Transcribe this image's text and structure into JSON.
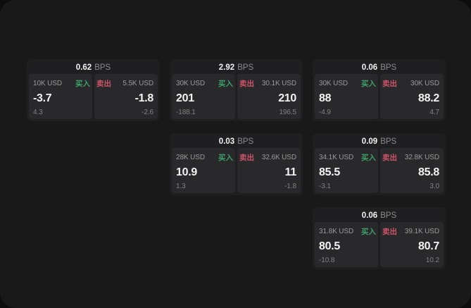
{
  "labels": {
    "buy": "买入",
    "sell": "卖出",
    "bps_unit": "BPS"
  },
  "colors": {
    "buy": "#3da06a",
    "sell": "#cd5468",
    "window_bg": "#19191a",
    "card_bg": "#1f1f21",
    "panel_bg": "#29292b"
  },
  "cards": [
    {
      "row": 1,
      "col": 1,
      "bps": "0.62",
      "buy": {
        "size": "10K USD",
        "price": "-3.7",
        "delta": "4.3"
      },
      "sell": {
        "size": "5.5K USD",
        "price": "-1.8",
        "delta": "-2.6"
      }
    },
    {
      "row": 1,
      "col": 2,
      "bps": "2.92",
      "buy": {
        "size": "30K USD",
        "price": "201",
        "delta": "-188.1"
      },
      "sell": {
        "size": "30.1K USD",
        "price": "210",
        "delta": "196.5"
      }
    },
    {
      "row": 1,
      "col": 3,
      "bps": "0.06",
      "buy": {
        "size": "30K USD",
        "price": "88",
        "delta": "-4.9"
      },
      "sell": {
        "size": "30K USD",
        "price": "88.2",
        "delta": "4.7"
      }
    },
    {
      "row": 2,
      "col": 2,
      "bps": "0.03",
      "buy": {
        "size": "28K USD",
        "price": "10.9",
        "delta": "1.3"
      },
      "sell": {
        "size": "32.6K USD",
        "price": "11",
        "delta": "-1.8"
      }
    },
    {
      "row": 2,
      "col": 3,
      "bps": "0.09",
      "buy": {
        "size": "34.1K USD",
        "price": "85.5",
        "delta": "-3.1"
      },
      "sell": {
        "size": "32.8K USD",
        "price": "85.8",
        "delta": "3.0"
      }
    },
    {
      "row": 3,
      "col": 3,
      "bps": "0.06",
      "buy": {
        "size": "31.8K USD",
        "price": "80.5",
        "delta": "-10.8"
      },
      "sell": {
        "size": "39.1K USD",
        "price": "80.7",
        "delta": "10.2"
      }
    }
  ]
}
